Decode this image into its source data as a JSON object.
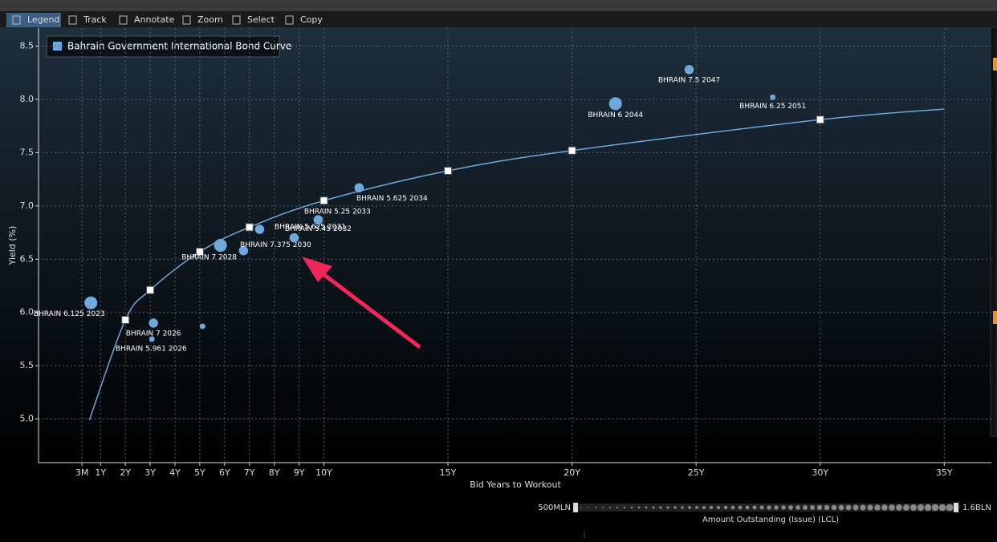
{
  "toolbar": [
    "Legend",
    "Track",
    "Annotate",
    "Zoom",
    "Select",
    "Copy"
  ],
  "chart_data": {
    "type": "scatter",
    "legend": "Bahrain Government International Bond Curve",
    "xlabel": "Bid Years to Workout",
    "ylabel": "Yield (%)",
    "size_label": "Amount Outstanding (Issue) (LCL)",
    "size_range": [
      {
        "value": 500,
        "label": "500MLN"
      },
      {
        "value": 1600,
        "label": "1.6BLN"
      }
    ],
    "xlim": [
      -1.5,
      36.9
    ],
    "ylim": [
      4.59,
      8.67
    ],
    "grid": true,
    "xticks": [
      {
        "value": 0.25,
        "label": "3M"
      },
      {
        "value": 1,
        "label": "1Y"
      },
      {
        "value": 2,
        "label": "2Y"
      },
      {
        "value": 3,
        "label": "3Y"
      },
      {
        "value": 4,
        "label": "4Y"
      },
      {
        "value": 5,
        "label": "5Y"
      },
      {
        "value": 6,
        "label": "6Y"
      },
      {
        "value": 7,
        "label": "7Y"
      },
      {
        "value": 8,
        "label": "8Y"
      },
      {
        "value": 9,
        "label": "9Y"
      },
      {
        "value": 10,
        "label": "10Y"
      },
      {
        "value": 15,
        "label": "15Y"
      },
      {
        "value": 20,
        "label": "20Y"
      },
      {
        "value": 25,
        "label": "25Y"
      },
      {
        "value": 30,
        "label": "30Y"
      },
      {
        "value": 35,
        "label": "35Y"
      }
    ],
    "yticks": [
      {
        "value": 5,
        "label": "5.0"
      },
      5.5,
      {
        "value": 6,
        "label": "6.0"
      },
      6.5,
      {
        "value": 7,
        "label": "7.0"
      },
      7.5,
      {
        "value": 8,
        "label": "8.0"
      },
      8.5
    ],
    "series": [
      {
        "name": "Bahrain Government International Bond Curve",
        "color": "#6fa8dc",
        "x": [
          0.55,
          2,
          3,
          5,
          7,
          10,
          15,
          20,
          30,
          35
        ],
        "values": [
          4.99,
          5.93,
          6.21,
          6.57,
          6.8,
          7.05,
          7.33,
          7.52,
          7.81,
          7.91
        ]
      }
    ],
    "points": {
      "color": "#6fa8dc",
      "x": [
        0.61,
        3.13,
        3.07,
        5.11,
        5.83,
        6.76,
        7.41,
        8.8,
        9.77,
        11.42,
        21.75,
        24.72,
        28.09
      ],
      "values": [
        6.09,
        5.9,
        5.75,
        5.87,
        6.63,
        6.58,
        6.78,
        6.7,
        6.87,
        7.17,
        7.96,
        8.28,
        8.02
      ],
      "sizes": [
        1500,
        1000,
        500,
        500,
        1500,
        1000,
        1000,
        1000,
        1000,
        1000,
        1500,
        1000,
        500
      ],
      "labels": [
        "BHRAIN 6.125 2023",
        "BHRAIN 7 2026",
        "BHRAIN 5.961 2026",
        null,
        "BHRAIN 7 2028",
        "BHRAIN 7.375 2030",
        "BHRAIN 5.625 2031",
        "BHRAIN 5.45 2032",
        "BHRAIN 5.25 2033",
        "BHRAIN 5.625 2034",
        "BHRAIN 6 2044",
        "BHRAIN 7.5 2047",
        "BHRAIN 6.25 2051"
      ]
    }
  }
}
